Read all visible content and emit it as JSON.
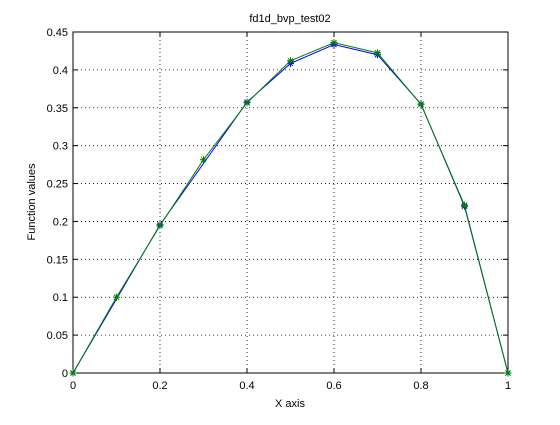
{
  "chart_data": {
    "type": "line",
    "title": "fd1d_bvp_test02",
    "xlabel": "X axis",
    "ylabel": "Function values",
    "xlim": [
      0,
      1
    ],
    "ylim": [
      0,
      0.45
    ],
    "xticks": [
      0,
      0.2,
      0.4,
      0.6,
      0.8,
      1
    ],
    "xtick_labels": [
      "0",
      "0.2",
      "0.4",
      "0.6",
      "0.8",
      "1"
    ],
    "yticks": [
      0,
      0.05,
      0.1,
      0.15,
      0.2,
      0.25,
      0.3,
      0.35,
      0.4,
      0.45
    ],
    "ytick_labels": [
      "0",
      "0.05",
      "0.1",
      "0.15",
      "0.2",
      "0.25",
      "0.3",
      "0.35",
      "0.4",
      "0.45"
    ],
    "grid": true,
    "series": [
      {
        "color": "#0000ff",
        "marker": "asterisk",
        "x": [
          0,
          0.2,
          0.4,
          0.5,
          0.6,
          0.7,
          0.8,
          0.9,
          1
        ],
        "y": [
          0,
          0.1955,
          0.3575,
          0.4085,
          0.4335,
          0.42,
          0.355,
          0.22,
          0
        ]
      },
      {
        "color": "#008000",
        "marker": "asterisk",
        "x": [
          0,
          0.1,
          0.2,
          0.3,
          0.4,
          0.5,
          0.6,
          0.7,
          0.8,
          0.9,
          1
        ],
        "y": [
          0,
          0.1,
          0.1945,
          0.2815,
          0.3565,
          0.412,
          0.436,
          0.4225,
          0.3545,
          0.2215,
          0
        ]
      }
    ]
  }
}
